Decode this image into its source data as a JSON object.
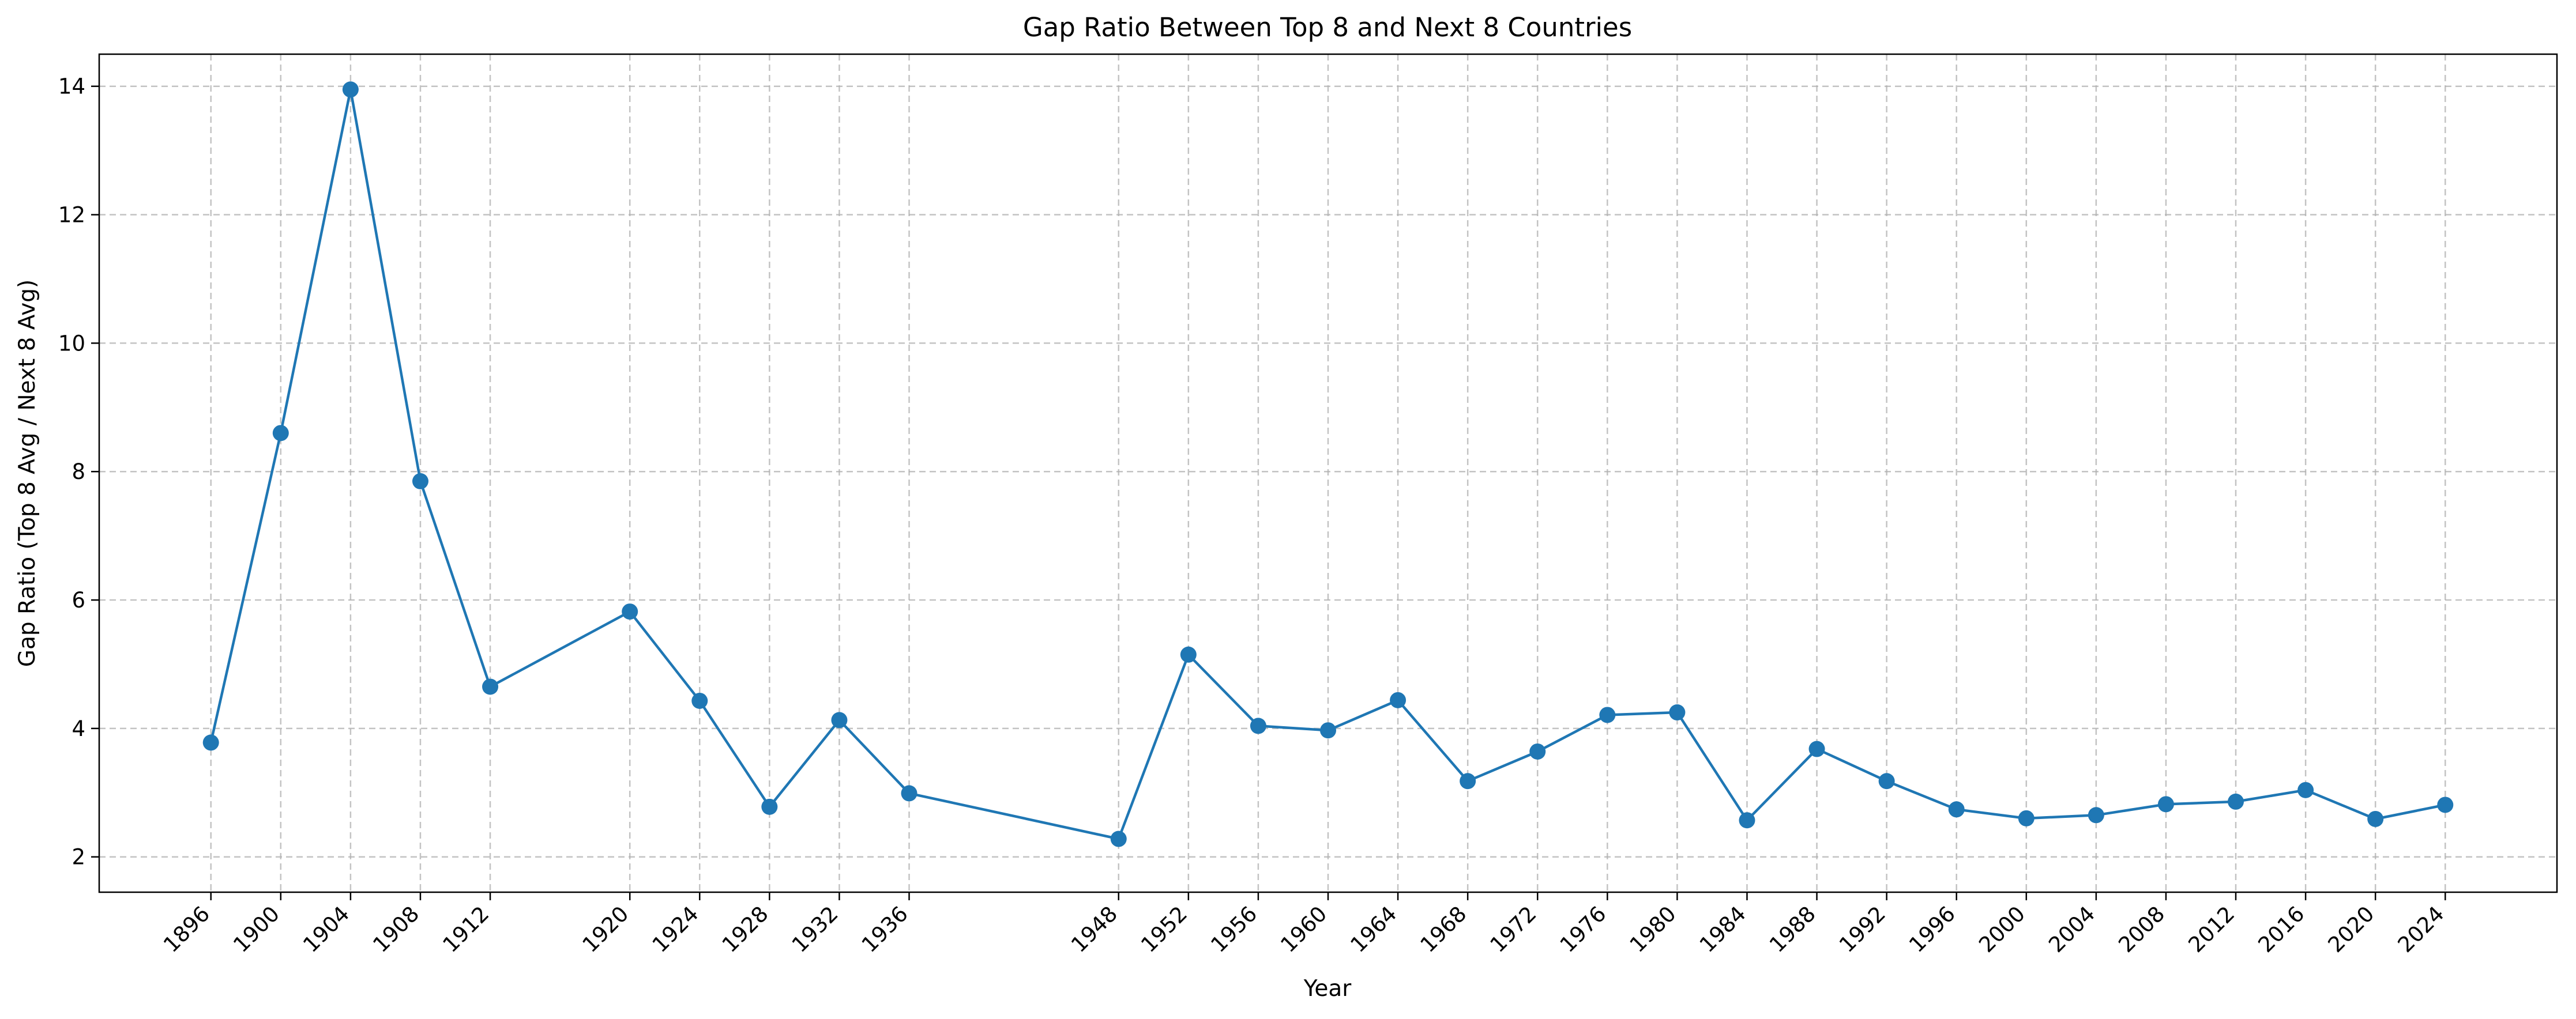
{
  "chart_data": {
    "type": "line",
    "title": "Gap Ratio Between Top 8 and Next 8 Countries",
    "xlabel": "Year",
    "ylabel": "Gap Ratio (Top 8 Avg / Next 8 Avg)",
    "grid": true,
    "x": [
      1896,
      1900,
      1904,
      1908,
      1912,
      1920,
      1924,
      1928,
      1932,
      1936,
      1948,
      1952,
      1956,
      1960,
      1964,
      1968,
      1972,
      1976,
      1980,
      1984,
      1988,
      1992,
      1996,
      2000,
      2004,
      2008,
      2012,
      2016,
      2020,
      2024
    ],
    "xticks": [
      "1896",
      "1900",
      "1904",
      "1908",
      "1912",
      "1920",
      "1924",
      "1928",
      "1932",
      "1936",
      "1948",
      "1952",
      "1956",
      "1960",
      "1964",
      "1968",
      "1972",
      "1976",
      "1980",
      "1984",
      "1988",
      "1992",
      "1996",
      "2000",
      "2004",
      "2008",
      "2012",
      "2016",
      "2020",
      "2024"
    ],
    "xlim": [
      1889.6,
      2030.4
    ],
    "series": [
      {
        "values": [
          3.78,
          8.6,
          13.95,
          7.85,
          4.65,
          5.82,
          4.43,
          2.78,
          4.13,
          2.99,
          2.28,
          5.15,
          4.04,
          3.97,
          4.44,
          3.18,
          3.64,
          4.21,
          4.25,
          2.57,
          3.68,
          3.18,
          2.74,
          2.6,
          2.65,
          2.82,
          2.86,
          3.04,
          2.59,
          2.81
        ],
        "color": "#1f77b4"
      }
    ],
    "yticks": [
      2,
      4,
      6,
      8,
      10,
      12,
      14
    ],
    "ylim": [
      1.45,
      14.5
    ]
  }
}
